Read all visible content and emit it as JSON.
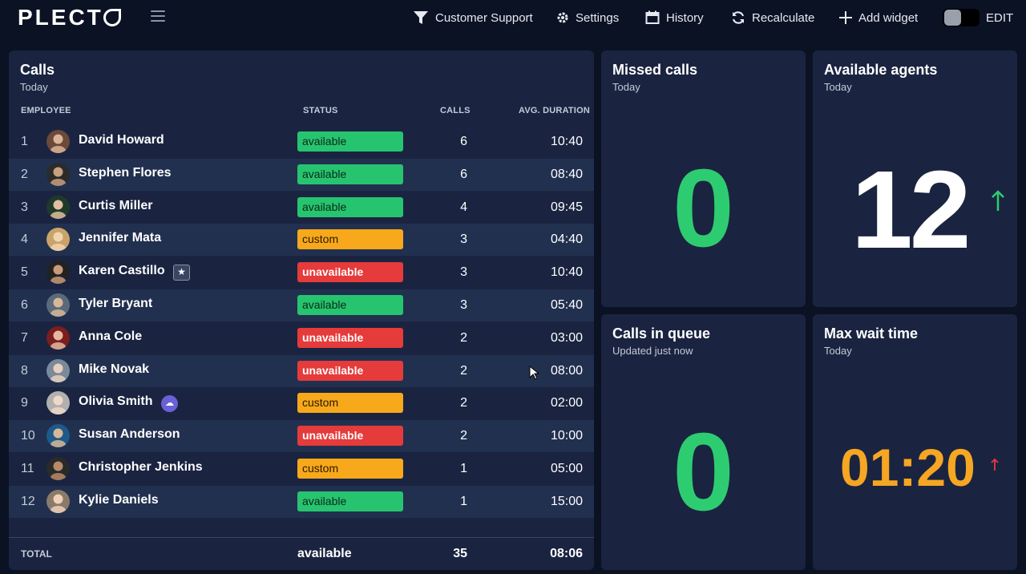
{
  "app": {
    "logo": "PLECT"
  },
  "nav": {
    "filter": "Customer Support",
    "settings": "Settings",
    "history": "History",
    "recalculate": "Recalculate",
    "add_widget": "Add widget",
    "edit": "EDIT"
  },
  "calls": {
    "title": "Calls",
    "subtitle": "Today",
    "columns": {
      "employee": "EMPLOYEE",
      "status": "STATUS",
      "calls": "CALLS",
      "avg_duration": "AVG. DURATION"
    },
    "rows": [
      {
        "rank": "1",
        "name": "David Howard",
        "status": "available",
        "calls": "6",
        "duration": "10:40"
      },
      {
        "rank": "2",
        "name": "Stephen Flores",
        "status": "available",
        "calls": "6",
        "duration": "08:40"
      },
      {
        "rank": "3",
        "name": "Curtis Miller",
        "status": "available",
        "calls": "4",
        "duration": "09:45"
      },
      {
        "rank": "4",
        "name": "Jennifer Mata",
        "status": "custom",
        "calls": "3",
        "duration": "04:40"
      },
      {
        "rank": "5",
        "name": "Karen Castillo",
        "status": "unavailable",
        "calls": "3",
        "duration": "10:40"
      },
      {
        "rank": "6",
        "name": "Tyler Bryant",
        "status": "available",
        "calls": "3",
        "duration": "05:40"
      },
      {
        "rank": "7",
        "name": "Anna Cole",
        "status": "unavailable",
        "calls": "2",
        "duration": "03:00"
      },
      {
        "rank": "8",
        "name": "Mike Novak",
        "status": "unavailable",
        "calls": "2",
        "duration": "08:00"
      },
      {
        "rank": "9",
        "name": "Olivia Smith",
        "status": "custom",
        "calls": "2",
        "duration": "02:00"
      },
      {
        "rank": "10",
        "name": "Susan Anderson",
        "status": "unavailable",
        "calls": "2",
        "duration": "10:00"
      },
      {
        "rank": "11",
        "name": "Christopher Jenkins",
        "status": "custom",
        "calls": "1",
        "duration": "05:00"
      },
      {
        "rank": "12",
        "name": "Kylie Daniels",
        "status": "available",
        "calls": "1",
        "duration": "15:00"
      }
    ],
    "total": {
      "label": "TOTAL",
      "status": "available",
      "calls": "35",
      "duration": "08:06"
    }
  },
  "widgets": {
    "missed": {
      "title": "Missed calls",
      "subtitle": "Today",
      "value": "0"
    },
    "agents": {
      "title": "Available agents",
      "subtitle": "Today",
      "value": "12",
      "trend": "up"
    },
    "queue": {
      "title": "Calls in queue",
      "subtitle": "Updated just now",
      "value": "0"
    },
    "wait": {
      "title": "Max wait time",
      "subtitle": "Today",
      "value": "01:20",
      "trend": "up"
    }
  },
  "colors": {
    "background": "#0b1224",
    "panel": "#1a2440",
    "available": "#27c470",
    "custom": "#f7a81b",
    "unavailable": "#e53b3b",
    "big_green": "#2ecc71",
    "big_orange": "#f5a623",
    "trend_green": "#2ecc71",
    "trend_red": "#e53b3b"
  },
  "icons": [
    "hamburger-icon",
    "filter-icon",
    "gear-icon",
    "calendar-icon",
    "refresh-icon",
    "plus-icon",
    "star-badge-icon",
    "cloud-badge-icon",
    "arrow-up-icon",
    "mouse-cursor-icon"
  ]
}
